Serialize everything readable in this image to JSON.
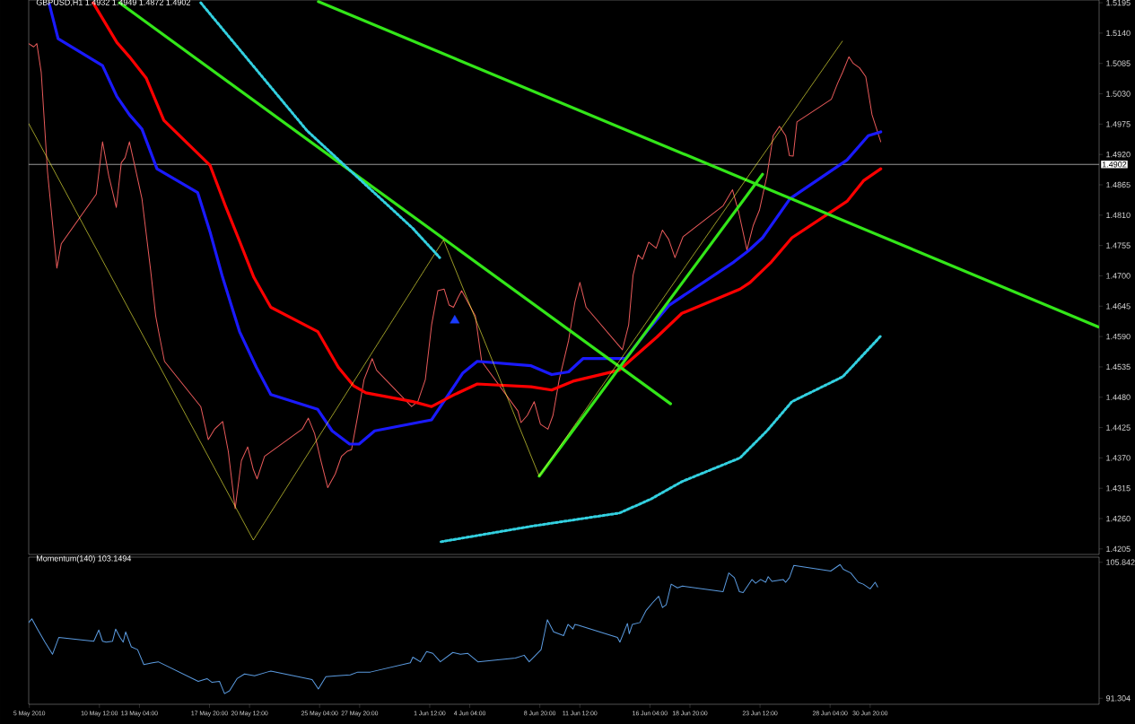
{
  "chart_data": [
    {
      "type": "line",
      "title": "GBPUSD,H1 1.4932 1.4949 1.4872 1.4902",
      "xlim": [
        "2010-05-05T19:00",
        "2010-07-16T02:00"
      ],
      "ylim": [
        1.4195,
        1.52
      ],
      "tick_labels": "y",
      "yticks": [
        {
          "value": 1.5195,
          "label": "1.5195"
        },
        {
          "value": 1.514,
          "label": "1.5140"
        },
        {
          "value": 1.5085,
          "label": "1.5085"
        },
        {
          "value": 1.503,
          "label": "1.5030"
        },
        {
          "value": 1.4975,
          "label": "1.4975"
        },
        {
          "value": 1.492,
          "label": "1.4920"
        },
        {
          "value": 1.4865,
          "label": "1.4865"
        },
        {
          "value": 1.481,
          "label": "1.4810"
        },
        {
          "value": 1.4755,
          "label": "1.4755"
        },
        {
          "value": 1.47,
          "label": "1.4700"
        },
        {
          "value": 1.4645,
          "label": "1.4645"
        },
        {
          "value": 1.459,
          "label": "1.4590"
        },
        {
          "value": 1.4535,
          "label": "1.4535"
        },
        {
          "value": 1.448,
          "label": "1.4480"
        },
        {
          "value": 1.4425,
          "label": "1.4425"
        },
        {
          "value": 1.437,
          "label": "1.4370"
        },
        {
          "value": 1.4315,
          "label": "1.4315"
        },
        {
          "value": 1.426,
          "label": "1.4260"
        },
        {
          "value": 1.4205,
          "label": "1.4205"
        }
      ],
      "ref_lines": [
        {
          "axis": "y",
          "value": 1.4902,
          "label": "1.4902",
          "color": "#c0c0c0"
        }
      ],
      "series": [
        {
          "color": "#e85a5a",
          "x": [
            "2010-05-05T19:00",
            "2010-05-06T03:00",
            "2010-05-06T08:00",
            "2010-05-06T15:00",
            "2010-05-07T01:00",
            "2010-05-07T16:00",
            "2010-05-07T23:00",
            "2010-05-10T07:00",
            "2010-05-10T17:00",
            "2010-05-11T03:00",
            "2010-05-11T15:00",
            "2010-05-11T23:00",
            "2010-05-12T05:00",
            "2010-05-12T12:00",
            "2010-05-12T21:00",
            "2010-05-13T08:00",
            "2010-05-13T22:00",
            "2010-05-14T06:00",
            "2010-05-14T12:00",
            "2010-05-14T20:00",
            "2010-05-17T06:00",
            "2010-05-17T18:00",
            "2010-05-18T04:00",
            "2010-05-18T17:00",
            "2010-05-19T02:00",
            "2010-05-19T13:00",
            "2010-05-19T23:00",
            "2010-05-20T09:00",
            "2010-05-20T18:00",
            "2010-05-21T00:00",
            "2010-05-21T12:00",
            "2010-05-24T00:00",
            "2010-05-24T10:00",
            "2010-05-24T20:00",
            "2010-05-25T06:00",
            "2010-05-25T17:00",
            "2010-05-26T05:00",
            "2010-05-26T15:00",
            "2010-05-27T00:00",
            "2010-05-27T07:00",
            "2010-05-27T17:00",
            "2010-05-28T03:00",
            "2010-05-28T16:00",
            "2010-05-28T23:00",
            "2010-05-31T07:00",
            "2010-05-31T17:00",
            "2010-06-01T05:00",
            "2010-06-01T15:00",
            "2010-06-02T01:00",
            "2010-06-02T11:00",
            "2010-06-02T19:00",
            "2010-06-03T02:00",
            "2010-06-03T09:00",
            "2010-06-03T15:00",
            "2010-06-04T01:00",
            "2010-06-04T13:00",
            "2010-06-04T23:00",
            "2010-06-07T09:00",
            "2010-06-07T14:00",
            "2010-06-08T00:00",
            "2010-06-08T11:00",
            "2010-06-08T21:00",
            "2010-06-09T09:00",
            "2010-06-09T17:00",
            "2010-06-10T03:00",
            "2010-06-10T18:00",
            "2010-06-11T04:00",
            "2010-06-11T12:00",
            "2010-06-11T22:00",
            "2010-06-14T08:00",
            "2010-06-14T18:00",
            "2010-06-15T01:00",
            "2010-06-15T09:00",
            "2010-06-15T16:00",
            "2010-06-16T02:00",
            "2010-06-16T14:00",
            "2010-06-17T00:00",
            "2010-06-17T10:00",
            "2010-06-17T20:00",
            "2010-06-18T09:00",
            "2010-06-21T01:00",
            "2010-06-21T16:00",
            "2010-06-22T02:00",
            "2010-06-22T15:00",
            "2010-06-23T01:00",
            "2010-06-23T11:00",
            "2010-06-23T23:00",
            "2010-06-24T09:00",
            "2010-06-24T19:00",
            "2010-06-25T05:00",
            "2010-06-25T11:00",
            "2010-06-25T17:00",
            "2010-06-25T23:00",
            "2010-06-28T06:00",
            "2010-06-28T16:00",
            "2010-06-29T00:00",
            "2010-06-29T10:00",
            "2010-06-29T17:00",
            "2010-06-30T03:00",
            "2010-06-30T13:00",
            "2010-06-30T23:00",
            "2010-07-01T13:00"
          ],
          "values": [
            1.5121,
            1.5115,
            1.5121,
            1.5069,
            1.4889,
            1.4714,
            1.4758,
            1.4848,
            1.4943,
            1.4881,
            1.4824,
            1.4905,
            1.4914,
            1.4943,
            1.4897,
            1.484,
            1.4709,
            1.4627,
            1.4591,
            1.4545,
            1.4463,
            1.4403,
            1.4422,
            1.4436,
            1.4382,
            1.4278,
            1.4365,
            1.439,
            1.4349,
            1.4332,
            1.4373,
            1.4422,
            1.4442,
            1.4414,
            1.4365,
            1.4316,
            1.4341,
            1.4373,
            1.4382,
            1.4385,
            1.4447,
            1.4512,
            1.455,
            1.4529,
            1.4463,
            1.4472,
            1.4512,
            1.4611,
            1.4673,
            1.4676,
            1.4647,
            1.4643,
            1.466,
            1.4673,
            1.4652,
            1.4627,
            1.4545,
            1.4455,
            1.4434,
            1.4447,
            1.4472,
            1.4431,
            1.4422,
            1.4447,
            1.4512,
            1.4583,
            1.4652,
            1.4688,
            1.4643,
            1.4566,
            1.4611,
            1.4701,
            1.4738,
            1.473,
            1.4761,
            1.475,
            1.4783,
            1.4766,
            1.4733,
            1.4771,
            1.4827,
            1.4856,
            1.4815,
            1.4747,
            1.4791,
            1.4819,
            1.4881,
            1.4954,
            1.4971,
            1.4954,
            1.4918,
            1.4917,
            1.4979,
            1.502,
            1.5049,
            1.5069,
            1.5097,
            1.5085,
            1.5077,
            1.5061,
            1.4992,
            1.4943
          ]
        },
        {
          "color": "#1a1aff",
          "x": [
            "2010-05-07T04:00",
            "2010-05-07T18:00",
            "2010-05-10T17:00",
            "2010-05-11T16:00",
            "2010-05-12T12:00",
            "2010-05-13T08:00",
            "2010-05-14T08:00",
            "2010-05-17T01:00",
            "2010-05-17T21:00",
            "2010-05-18T17:00",
            "2010-05-19T20:00",
            "2010-05-20T23:00",
            "2010-05-21T22:00",
            "2010-05-25T01:00",
            "2010-05-26T00:00",
            "2010-05-27T04:00",
            "2010-05-27T19:00",
            "2010-05-28T20:00",
            "2010-06-01T15:00",
            "2010-06-03T17:00",
            "2010-06-04T16:00",
            "2010-06-08T06:00",
            "2010-06-09T15:00",
            "2010-06-10T18:00",
            "2010-06-11T17:00",
            "2010-06-14T13:00",
            "2010-06-15T23:00",
            "2010-06-17T11:00",
            "2010-06-21T18:00",
            "2010-06-22T17:00",
            "2010-06-23T16:00",
            "2010-06-25T12:00",
            "2010-06-29T07:00",
            "2010-06-30T17:00",
            "2010-07-01T13:00"
          ],
          "values": [
            1.5192,
            1.513,
            1.5081,
            1.5025,
            1.4992,
            1.4966,
            1.4894,
            1.4851,
            1.4779,
            1.4697,
            1.4599,
            1.4534,
            1.4485,
            1.4458,
            1.4419,
            1.4395,
            1.4395,
            1.4419,
            1.4439,
            1.4524,
            1.4545,
            1.4537,
            1.4521,
            1.4526,
            1.455,
            1.455,
            1.4599,
            1.4647,
            1.4725,
            1.4745,
            1.4769,
            1.484,
            1.491,
            1.4954,
            1.4961
          ]
        },
        {
          "color": "#ff0000",
          "x": [
            "2010-05-10T02:00",
            "2010-05-11T16:00",
            "2010-05-12T12:00",
            "2010-05-13T15:00",
            "2010-05-14T19:00",
            "2010-05-17T21:00",
            "2010-05-18T21:00",
            "2010-05-19T20:00",
            "2010-05-20T19:00",
            "2010-05-21T22:00",
            "2010-05-25T01:00",
            "2010-05-26T10:00",
            "2010-05-27T10:00",
            "2010-05-28T06:00",
            "2010-05-31T09:00",
            "2010-06-01T15:00",
            "2010-06-03T04:00",
            "2010-06-04T16:00",
            "2010-06-08T06:00",
            "2010-06-09T15:00",
            "2010-06-11T01:00",
            "2010-06-14T03:00",
            "2010-06-14T23:00",
            "2010-06-16T15:00",
            "2010-06-18T07:00",
            "2010-06-22T04:00",
            "2010-06-22T20:00",
            "2010-06-24T06:00",
            "2010-06-25T15:00",
            "2010-06-29T07:00",
            "2010-06-30T10:00",
            "2010-07-01T13:00"
          ],
          "values": [
            1.5195,
            1.5123,
            1.5097,
            1.5058,
            1.4982,
            1.49,
            1.4828,
            1.4763,
            1.4697,
            1.4643,
            1.4599,
            1.4534,
            1.4501,
            1.4488,
            1.4472,
            1.4463,
            1.4485,
            1.4504,
            1.4499,
            1.4493,
            1.4509,
            1.4529,
            1.4549,
            1.4589,
            1.4632,
            1.4676,
            1.4688,
            1.4725,
            1.4769,
            1.4835,
            1.4873,
            1.4894
          ]
        },
        {
          "color": "#33e619",
          "x": [
            "2010-05-11T20:00",
            "2010-06-17T13:00"
          ],
          "values": [
            1.5195,
            1.4468
          ]
        },
        {
          "color": "#33e619",
          "x": [
            "2010-05-25T02:00",
            "2010-07-16T02:00"
          ],
          "values": [
            1.5197,
            1.4607
          ]
        },
        {
          "color": "#33e619",
          "x": [
            "2010-06-08T19:00",
            "2010-06-23T16:00"
          ],
          "values": [
            1.4337,
            1.4884
          ]
        },
        {
          "color": "#ffff40",
          "x": [
            "2010-05-05T19:00",
            "2010-05-20T18:00",
            "2010-06-02T10:00",
            "2010-06-08T19:00",
            "2010-06-29T00:00"
          ],
          "values": [
            1.4976,
            1.4221,
            1.4765,
            1.4337,
            1.5126
          ]
        },
        {
          "color": "#33d0e0",
          "line_style": "dotted",
          "x": [
            "2010-05-17T06:00",
            "2010-05-24T08:00",
            "2010-05-31T09:00",
            "2010-06-02T04:00"
          ],
          "values": [
            1.5195,
            1.4963,
            1.4786,
            1.4733
          ]
        },
        {
          "color": "#33d0e0",
          "line_style": "dotted",
          "x": [
            "2010-06-02T06:00",
            "2010-06-08T06:00",
            "2010-06-14T03:00",
            "2010-06-16T05:00",
            "2010-06-18T07:00",
            "2010-06-22T04:00",
            "2010-06-23T23:00",
            "2010-06-25T15:00",
            "2010-06-29T00:00",
            "2010-07-01T13:00"
          ],
          "values": [
            1.4218,
            1.4246,
            1.427,
            1.4295,
            1.4327,
            1.437,
            1.4419,
            1.4472,
            1.4517,
            1.4591
          ]
        },
        {
          "type": "scatter",
          "marker": "triangle",
          "color": "#1a3cff",
          "x": [
            "2010-06-03T04:00"
          ],
          "values": [
            1.4619
          ]
        }
      ]
    },
    {
      "type": "line",
      "title": "Momentum(140) 103.1494",
      "xlim": [
        "2010-05-05T19:00",
        "2010-07-16T02:00"
      ],
      "ylim": [
        90.66,
        106.39
      ],
      "xticks": [
        {
          "value": "2010-05-05T20:00",
          "label": "5 May 2010"
        },
        {
          "value": "2010-05-10T12:00",
          "label": "10 May 12:00"
        },
        {
          "value": "2010-05-13T04:00",
          "label": "13 May 04:00"
        },
        {
          "value": "2010-05-17T20:00",
          "label": "17 May 20:00"
        },
        {
          "value": "2010-05-20T12:00",
          "label": "20 May 12:00"
        },
        {
          "value": "2010-05-25T04:00",
          "label": "25 May 04:00"
        },
        {
          "value": "2010-05-27T20:00",
          "label": "27 May 20:00"
        },
        {
          "value": "2010-06-01T12:00",
          "label": "1 Jun 12:00"
        },
        {
          "value": "2010-06-04T04:00",
          "label": "4 Jun 04:00"
        },
        {
          "value": "2010-06-08T20:00",
          "label": "8 Jun 20:00"
        },
        {
          "value": "2010-06-11T12:00",
          "label": "11 Jun 12:00"
        },
        {
          "value": "2010-06-16T04:00",
          "label": "16 Jun 04:00"
        },
        {
          "value": "2010-06-18T20:00",
          "label": "18 Jun 20:00"
        },
        {
          "value": "2010-06-23T12:00",
          "label": "23 Jun 12:00"
        },
        {
          "value": "2010-06-28T04:00",
          "label": "28 Jun 04:00"
        },
        {
          "value": "2010-06-30T20:00",
          "label": "30 Jun 20:00"
        }
      ],
      "yticks": [
        {
          "value": 105.842,
          "label": "105.842"
        },
        {
          "value": 91.304,
          "label": "91.304"
        }
      ],
      "series": [
        {
          "color": "#5b9be0",
          "x": [
            "2010-05-05T19:00",
            "2010-05-06T00:00",
            "2010-05-06T09:00",
            "2010-05-06T21:00",
            "2010-05-07T09:00",
            "2010-05-07T19:00",
            "2010-05-10T03:00",
            "2010-05-10T11:00",
            "2010-05-10T17:00",
            "2010-05-10T23:00",
            "2010-05-11T09:00",
            "2010-05-11T14:00",
            "2010-05-11T21:00",
            "2010-05-12T02:00",
            "2010-05-12T06:00",
            "2010-05-12T15:00",
            "2010-05-13T01:00",
            "2010-05-13T11:00",
            "2010-05-14T01:00",
            "2010-05-14T10:00",
            "2010-05-17T02:00",
            "2010-05-17T16:00",
            "2010-05-18T00:00",
            "2010-05-18T12:00",
            "2010-05-18T20:00",
            "2010-05-19T04:00",
            "2010-05-19T16:00",
            "2010-05-20T04:00",
            "2010-05-20T20:00",
            "2010-05-21T16:00",
            "2010-05-21T22:00",
            "2010-05-24T16:00",
            "2010-05-25T02:00",
            "2010-05-25T14:00",
            "2010-05-26T08:00",
            "2010-05-27T05:00",
            "2010-05-27T17:00",
            "2010-05-28T13:00",
            "2010-05-31T05:00",
            "2010-05-31T09:00",
            "2010-05-31T21:00",
            "2010-06-01T07:00",
            "2010-06-01T17:00",
            "2010-06-02T05:00",
            "2010-06-03T01:00",
            "2010-06-03T13:00",
            "2010-06-04T01:00",
            "2010-06-04T17:00",
            "2010-06-07T05:00",
            "2010-06-07T19:00",
            "2010-06-08T03:00",
            "2010-06-08T22:00",
            "2010-06-09T08:00",
            "2010-06-09T18:00",
            "2010-06-10T10:00",
            "2010-06-10T17:00",
            "2010-06-11T01:00",
            "2010-06-11T04:00",
            "2010-06-11T10:00",
            "2010-06-14T00:00",
            "2010-06-14T04:00",
            "2010-06-14T16:00",
            "2010-06-14T19:00",
            "2010-06-15T00:00",
            "2010-06-15T12:00",
            "2010-06-15T22:00",
            "2010-06-16T08:00",
            "2010-06-16T18:00",
            "2010-06-17T00:00",
            "2010-06-17T06:00",
            "2010-06-17T14:00",
            "2010-06-18T00:00",
            "2010-06-18T08:00",
            "2010-06-21T01:00",
            "2010-06-21T10:00",
            "2010-06-21T19:00",
            "2010-06-22T03:00",
            "2010-06-22T09:00",
            "2010-06-22T23:00",
            "2010-06-23T05:00",
            "2010-06-23T13:00",
            "2010-06-23T21:00",
            "2010-06-24T01:00",
            "2010-06-24T07:00",
            "2010-06-25T01:00",
            "2010-06-25T05:00",
            "2010-06-25T11:00",
            "2010-06-25T18:00",
            "2010-06-28T05:00",
            "2010-06-28T20:00",
            "2010-06-29T01:00",
            "2010-06-29T13:00",
            "2010-06-30T01:00",
            "2010-06-30T09:00",
            "2010-06-30T20:00",
            "2010-07-01T04:00",
            "2010-07-01T08:00"
          ],
          "values": [
            99.4,
            99.8,
            98.7,
            97.3,
            96.0,
            97.8,
            97.4,
            98.6,
            97.4,
            97.3,
            97.4,
            98.7,
            97.8,
            97.3,
            98.4,
            96.8,
            96.5,
            94.9,
            95.1,
            95.2,
            93.1,
            93.4,
            93.0,
            93.1,
            91.8,
            92.1,
            93.4,
            93.9,
            93.7,
            94.1,
            94.2,
            93.3,
            92.3,
            93.6,
            93.7,
            93.8,
            94.1,
            94.1,
            95.1,
            95.7,
            95.2,
            96.3,
            96.1,
            95.2,
            96.2,
            96.0,
            96.1,
            95.2,
            95.6,
            95.9,
            95.2,
            96.5,
            99.7,
            98.4,
            98.0,
            99.2,
            98.7,
            99.2,
            99.1,
            97.8,
            97.3,
            99.3,
            98.2,
            99.2,
            99.4,
            100.7,
            101.5,
            102.2,
            101.0,
            101.3,
            103.5,
            103.1,
            103.3,
            102.7,
            104.7,
            104.2,
            102.7,
            102.6,
            104.0,
            103.6,
            104.0,
            103.7,
            104.3,
            103.8,
            104.0,
            103.7,
            104.2,
            105.5,
            104.9,
            105.6,
            105.1,
            104.7,
            103.7,
            103.5,
            103.0,
            103.7,
            103.2
          ]
        }
      ]
    }
  ]
}
